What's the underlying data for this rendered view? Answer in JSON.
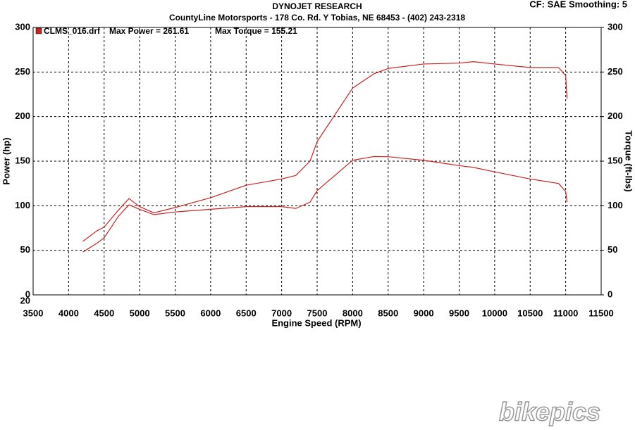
{
  "chart_data": {
    "type": "line",
    "title": "DYNOJET RESEARCH",
    "subtitle": "CountyLine Motorsports - 178 Co. Rd. Y   Tobias, NE  68453 - (402) 243-2318",
    "settings_label": "CF: SAE  Smoothing: 5",
    "legend_label": "CLMS_016.drf",
    "legend_color": "#cc2222",
    "annotations": [
      "Max Power = 261.61",
      "Max Torque = 155.21"
    ],
    "x_label": "Engine Speed (RPM)",
    "y_label": "Power (hp)",
    "y2_label": "Torque (ft-lbs)",
    "corner_label": "20",
    "watermark": "bikepics",
    "x": [
      4200,
      4400,
      4500,
      4700,
      4850,
      5000,
      5200,
      5500,
      6000,
      6500,
      7000,
      7200,
      7400,
      7500,
      8000,
      8300,
      8500,
      9000,
      9500,
      9700,
      10000,
      10500,
      10900,
      11000,
      11020
    ],
    "series": [
      {
        "color": "#cc2222",
        "values": [
          60,
          72,
          76,
          95,
          108,
          99,
          92,
          98,
          109,
          123,
          130,
          134,
          150,
          172,
          232,
          248,
          254,
          259,
          260,
          261.6,
          259,
          255,
          255,
          246,
          220
        ]
      },
      {
        "color": "#cc2222",
        "axis": "y2",
        "values": [
          48,
          58,
          64,
          88,
          101,
          96,
          90,
          93,
          96,
          99,
          99,
          97,
          104,
          117,
          151,
          155.2,
          155,
          151,
          145,
          143,
          138,
          130,
          125,
          116,
          104
        ]
      }
    ],
    "xlim": [
      3500,
      11500
    ],
    "xticks": [
      3500,
      4000,
      4500,
      5000,
      5500,
      6000,
      6500,
      7000,
      7500,
      8000,
      8500,
      9000,
      9500,
      10000,
      10500,
      11000,
      11500
    ],
    "ylim": [
      0,
      300
    ],
    "yticks": [
      0,
      50,
      100,
      150,
      200,
      250,
      300
    ],
    "y2lim": [
      0,
      300
    ],
    "y2ticks": [
      0,
      50,
      100,
      150,
      200,
      250,
      300
    ],
    "grid": true
  }
}
